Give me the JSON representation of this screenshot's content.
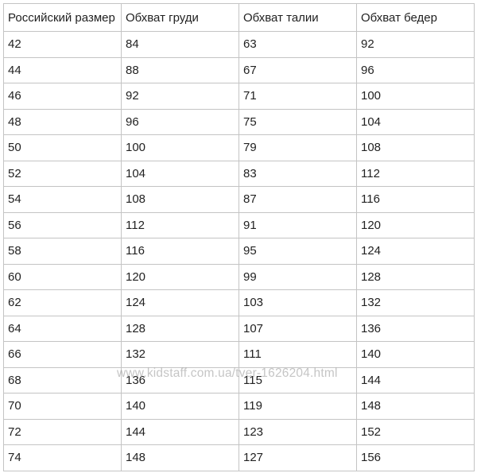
{
  "table": {
    "header": [
      "Российский размер",
      "Обхват груди",
      "Обхват талии",
      "Обхват бедер"
    ],
    "rows": [
      [
        42,
        84,
        63,
        92
      ],
      [
        44,
        88,
        67,
        96
      ],
      [
        46,
        92,
        71,
        100
      ],
      [
        48,
        96,
        75,
        104
      ],
      [
        50,
        100,
        79,
        108
      ],
      [
        52,
        104,
        83,
        112
      ],
      [
        54,
        108,
        87,
        116
      ],
      [
        56,
        112,
        91,
        120
      ],
      [
        58,
        116,
        95,
        124
      ],
      [
        60,
        120,
        99,
        128
      ],
      [
        62,
        124,
        103,
        132
      ],
      [
        64,
        128,
        107,
        136
      ],
      [
        66,
        132,
        111,
        140
      ],
      [
        68,
        136,
        115,
        144
      ],
      [
        70,
        140,
        119,
        148
      ],
      [
        72,
        144,
        123,
        152
      ],
      [
        74,
        148,
        127,
        156
      ]
    ]
  },
  "watermark": "www.kidstaff.com.ua/tver-1626204.html"
}
